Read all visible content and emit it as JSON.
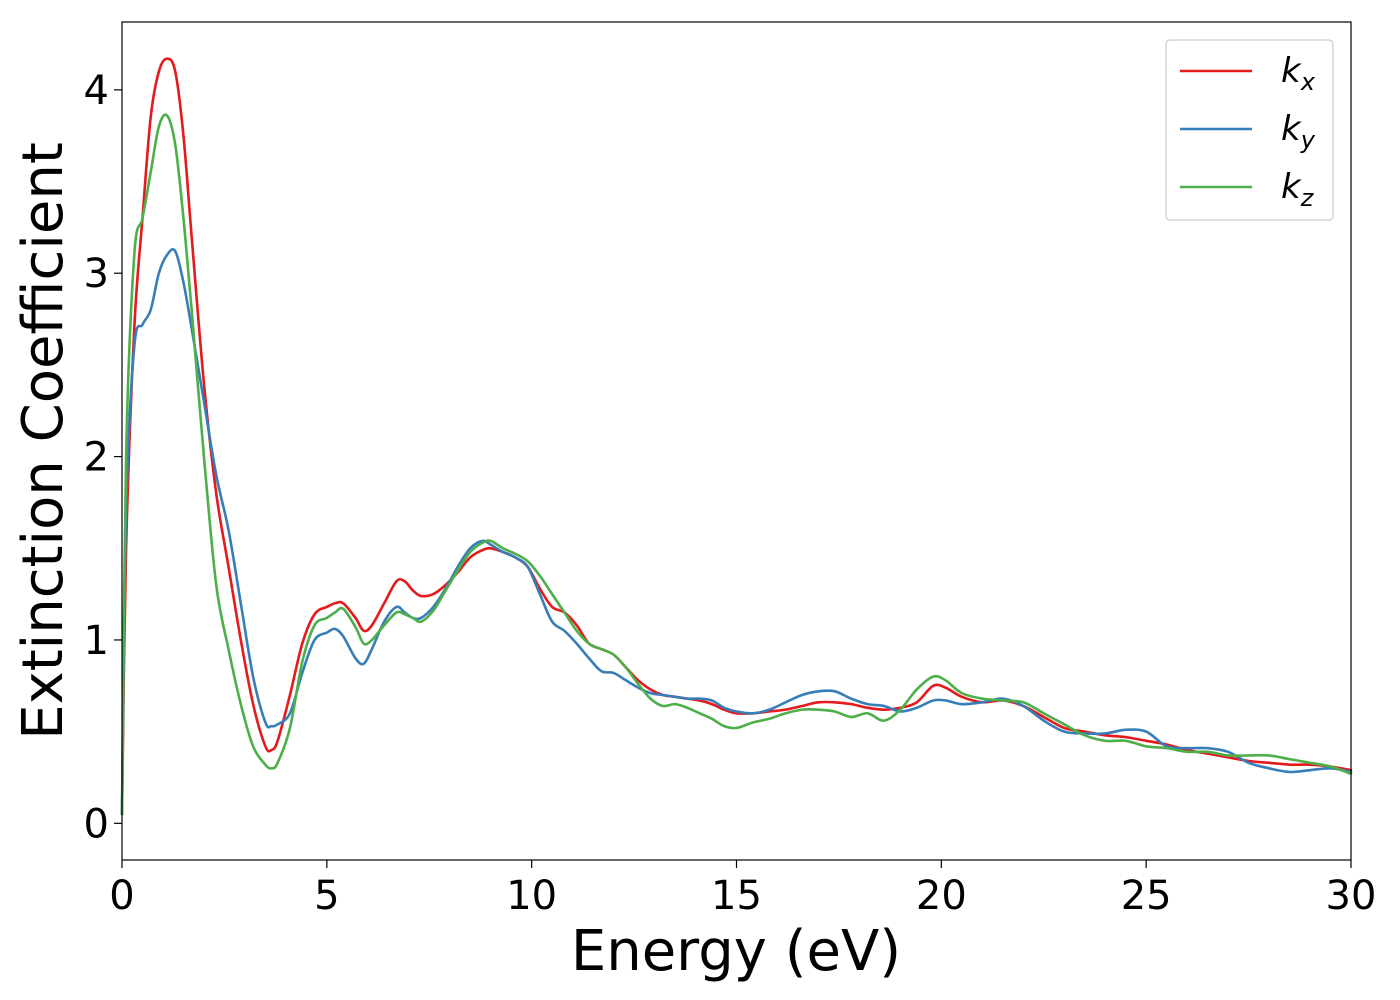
{
  "chart_data": {
    "type": "line",
    "xlabel": "Energy (eV)",
    "ylabel": "Extinction Coefficient",
    "xlim": [
      0,
      30
    ],
    "ylim": [
      -0.2,
      4.37
    ],
    "xticks": [
      0,
      5,
      10,
      15,
      20,
      25,
      30
    ],
    "yticks": [
      0,
      1,
      2,
      3,
      4
    ],
    "grid": false,
    "legend_position": "top-right",
    "series": [
      {
        "name": "k_x",
        "label_base": "k",
        "label_sub": "x",
        "color": "#e41a1c",
        "x": [
          0,
          0.1,
          0.3,
          0.5,
          0.7,
          0.9,
          1.1,
          1.3,
          1.5,
          1.7,
          2.0,
          2.3,
          2.6,
          2.9,
          3.2,
          3.5,
          3.65,
          3.8,
          4.1,
          4.4,
          4.7,
          5.0,
          5.2,
          5.4,
          5.7,
          5.9,
          6.1,
          6.4,
          6.7,
          6.9,
          7.1,
          7.3,
          7.6,
          7.9,
          8.2,
          8.5,
          8.8,
          9.0,
          9.3,
          9.6,
          9.9,
          10.2,
          10.5,
          10.8,
          11.1,
          11.4,
          11.7,
          12.0,
          12.3,
          12.6,
          12.9,
          13.2,
          13.5,
          13.8,
          14.1,
          14.4,
          14.7,
          15.0,
          15.4,
          15.8,
          16.2,
          16.6,
          17.0,
          17.4,
          17.8,
          18.2,
          18.6,
          19.0,
          19.4,
          19.8,
          20.1,
          20.5,
          21.0,
          21.5,
          22.0,
          22.5,
          23.0,
          23.5,
          24.0,
          24.5,
          25.0,
          25.5,
          26.0,
          26.5,
          27.0,
          27.5,
          28.0,
          28.5,
          29.0,
          29.5,
          30.0
        ],
        "y": [
          0.05,
          1.5,
          2.7,
          3.3,
          3.85,
          4.1,
          4.17,
          4.1,
          3.75,
          3.2,
          2.4,
          1.8,
          1.4,
          1.0,
          0.65,
          0.42,
          0.4,
          0.45,
          0.7,
          0.98,
          1.14,
          1.18,
          1.2,
          1.2,
          1.12,
          1.05,
          1.08,
          1.2,
          1.32,
          1.32,
          1.27,
          1.24,
          1.25,
          1.3,
          1.37,
          1.45,
          1.49,
          1.5,
          1.48,
          1.45,
          1.4,
          1.28,
          1.18,
          1.15,
          1.08,
          0.98,
          0.95,
          0.92,
          0.85,
          0.78,
          0.73,
          0.7,
          0.69,
          0.68,
          0.67,
          0.65,
          0.62,
          0.6,
          0.6,
          0.61,
          0.62,
          0.64,
          0.66,
          0.66,
          0.65,
          0.63,
          0.62,
          0.63,
          0.66,
          0.75,
          0.74,
          0.69,
          0.66,
          0.67,
          0.64,
          0.58,
          0.52,
          0.5,
          0.48,
          0.47,
          0.45,
          0.43,
          0.4,
          0.38,
          0.36,
          0.34,
          0.33,
          0.32,
          0.32,
          0.31,
          0.29
        ]
      },
      {
        "name": "k_y",
        "label_base": "k",
        "label_sub": "y",
        "color": "#377eb8",
        "x": [
          0,
          0.1,
          0.3,
          0.5,
          0.7,
          0.9,
          1.1,
          1.3,
          1.5,
          1.7,
          2.0,
          2.3,
          2.6,
          2.9,
          3.2,
          3.5,
          3.65,
          3.8,
          4.1,
          4.4,
          4.7,
          5.0,
          5.2,
          5.4,
          5.7,
          5.9,
          6.1,
          6.4,
          6.7,
          6.9,
          7.1,
          7.3,
          7.6,
          7.9,
          8.2,
          8.5,
          8.8,
          9.0,
          9.3,
          9.6,
          9.9,
          10.2,
          10.5,
          10.8,
          11.1,
          11.4,
          11.7,
          12.0,
          12.3,
          12.6,
          12.9,
          13.2,
          13.5,
          13.8,
          14.1,
          14.4,
          14.7,
          15.0,
          15.4,
          15.8,
          16.2,
          16.6,
          17.0,
          17.4,
          17.8,
          18.2,
          18.6,
          19.0,
          19.4,
          19.8,
          20.1,
          20.5,
          21.0,
          21.5,
          22.0,
          22.5,
          23.0,
          23.5,
          24.0,
          24.5,
          25.0,
          25.5,
          26.0,
          26.5,
          27.0,
          27.5,
          28.0,
          28.5,
          29.0,
          29.5,
          30.0
        ],
        "y": [
          0.05,
          1.7,
          2.6,
          2.72,
          2.8,
          3.0,
          3.1,
          3.12,
          2.95,
          2.7,
          2.3,
          1.9,
          1.6,
          1.2,
          0.8,
          0.55,
          0.53,
          0.54,
          0.6,
          0.82,
          1.0,
          1.04,
          1.06,
          1.02,
          0.9,
          0.87,
          0.95,
          1.1,
          1.18,
          1.15,
          1.12,
          1.12,
          1.18,
          1.28,
          1.4,
          1.5,
          1.54,
          1.52,
          1.48,
          1.45,
          1.4,
          1.25,
          1.1,
          1.05,
          0.98,
          0.9,
          0.83,
          0.82,
          0.78,
          0.74,
          0.71,
          0.7,
          0.69,
          0.68,
          0.68,
          0.67,
          0.63,
          0.61,
          0.6,
          0.62,
          0.66,
          0.7,
          0.72,
          0.72,
          0.68,
          0.65,
          0.64,
          0.61,
          0.63,
          0.67,
          0.67,
          0.65,
          0.66,
          0.68,
          0.64,
          0.56,
          0.5,
          0.49,
          0.49,
          0.51,
          0.5,
          0.42,
          0.41,
          0.41,
          0.39,
          0.33,
          0.3,
          0.28,
          0.29,
          0.3,
          0.28
        ]
      },
      {
        "name": "k_z",
        "label_base": "k",
        "label_sub": "z",
        "color": "#4daf4a",
        "x": [
          0,
          0.1,
          0.3,
          0.5,
          0.7,
          0.9,
          1.1,
          1.3,
          1.5,
          1.7,
          2.0,
          2.3,
          2.6,
          2.9,
          3.2,
          3.5,
          3.65,
          3.8,
          4.1,
          4.4,
          4.7,
          5.0,
          5.2,
          5.4,
          5.7,
          5.9,
          6.1,
          6.4,
          6.7,
          6.9,
          7.1,
          7.3,
          7.6,
          7.9,
          8.2,
          8.5,
          8.8,
          9.0,
          9.3,
          9.6,
          9.9,
          10.2,
          10.5,
          10.8,
          11.1,
          11.4,
          11.7,
          12.0,
          12.3,
          12.6,
          12.9,
          13.2,
          13.5,
          13.8,
          14.1,
          14.4,
          14.7,
          15.0,
          15.4,
          15.8,
          16.2,
          16.6,
          17.0,
          17.4,
          17.8,
          18.2,
          18.6,
          19.0,
          19.4,
          19.8,
          20.1,
          20.5,
          21.0,
          21.5,
          22.0,
          22.5,
          23.0,
          23.5,
          24.0,
          24.5,
          25.0,
          25.5,
          26.0,
          26.5,
          27.0,
          27.5,
          28.0,
          28.5,
          29.0,
          29.5,
          30.0
        ],
        "y": [
          0.05,
          2.0,
          3.1,
          3.3,
          3.55,
          3.8,
          3.86,
          3.7,
          3.3,
          2.8,
          2.0,
          1.3,
          0.95,
          0.65,
          0.42,
          0.32,
          0.3,
          0.33,
          0.52,
          0.88,
          1.08,
          1.12,
          1.15,
          1.17,
          1.07,
          0.98,
          1.0,
          1.08,
          1.15,
          1.14,
          1.12,
          1.1,
          1.16,
          1.27,
          1.38,
          1.48,
          1.53,
          1.54,
          1.5,
          1.47,
          1.43,
          1.35,
          1.25,
          1.15,
          1.05,
          0.98,
          0.95,
          0.92,
          0.85,
          0.76,
          0.68,
          0.64,
          0.65,
          0.63,
          0.6,
          0.57,
          0.53,
          0.52,
          0.55,
          0.57,
          0.6,
          0.62,
          0.62,
          0.61,
          0.58,
          0.6,
          0.56,
          0.62,
          0.73,
          0.8,
          0.78,
          0.71,
          0.68,
          0.67,
          0.66,
          0.6,
          0.54,
          0.48,
          0.45,
          0.45,
          0.42,
          0.41,
          0.39,
          0.39,
          0.37,
          0.37,
          0.37,
          0.35,
          0.33,
          0.31,
          0.27
        ]
      }
    ]
  }
}
